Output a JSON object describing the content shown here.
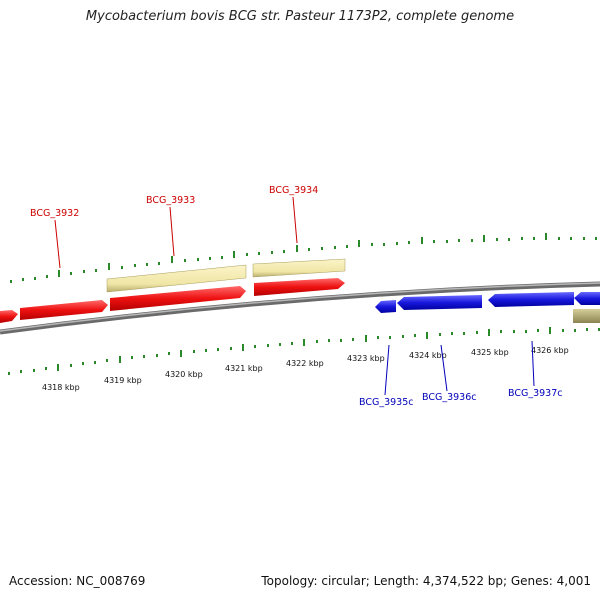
{
  "title": "Mycobacterium bovis BCG str. Pasteur 1173P2, complete genome",
  "footer": {
    "accession": "Accession: NC_008769",
    "summary": "Topology: circular; Length: 4,374,522 bp; Genes: 4,001"
  },
  "colors": {
    "forward_gene": "#ee1111",
    "reverse_gene": "#1818dd",
    "feature_forward": "#f0e6a6",
    "feature_reverse": "#a8a070",
    "backbone": "#888888",
    "tick": "#2a8a2a",
    "forward_label": "#cc0000",
    "reverse_label": "#0000bb"
  },
  "scale_labels": [
    "4318 kbp",
    "4319 kbp",
    "4320 kbp",
    "4321 kbp",
    "4322 kbp",
    "4323 kbp",
    "4324 kbp",
    "4325 kbp",
    "4326 kbp"
  ],
  "gene_labels": {
    "forward": [
      "BCG_3932",
      "BCG_3933",
      "BCG_3934"
    ],
    "reverse": [
      "BCG_3935c",
      "BCG_3936c",
      "BCG_3937c"
    ]
  }
}
